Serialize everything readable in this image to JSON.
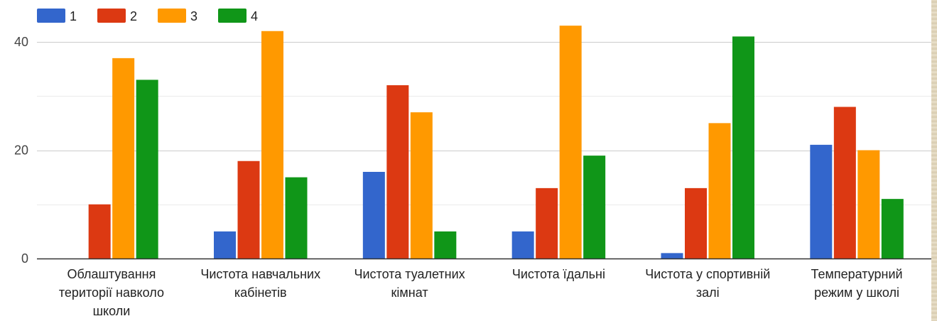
{
  "chart_data": {
    "type": "bar",
    "title": "",
    "xlabel": "",
    "ylabel": "",
    "ylim": [
      0,
      45
    ],
    "yticks": [
      0,
      20,
      40
    ],
    "grid": true,
    "legend_position": "top-left",
    "categories": [
      [
        "Облаштування",
        "території навколо",
        "школи"
      ],
      [
        "Чистота навчальних",
        "кабінетів"
      ],
      [
        "Чистота туалетних",
        "кімнат"
      ],
      [
        "Чистота їдальні"
      ],
      [
        "Чистота у спортивній",
        "залі"
      ],
      [
        "Температурний",
        "режим у школі"
      ]
    ],
    "series": [
      {
        "name": "1",
        "color": "#3366cc",
        "values": [
          0,
          5,
          16,
          5,
          1,
          21
        ]
      },
      {
        "name": "2",
        "color": "#dc3912",
        "values": [
          10,
          18,
          32,
          13,
          13,
          28
        ]
      },
      {
        "name": "3",
        "color": "#ff9900",
        "values": [
          37,
          42,
          27,
          43,
          25,
          20
        ]
      },
      {
        "name": "4",
        "color": "#109618",
        "values": [
          33,
          15,
          5,
          19,
          41,
          11
        ]
      }
    ]
  }
}
